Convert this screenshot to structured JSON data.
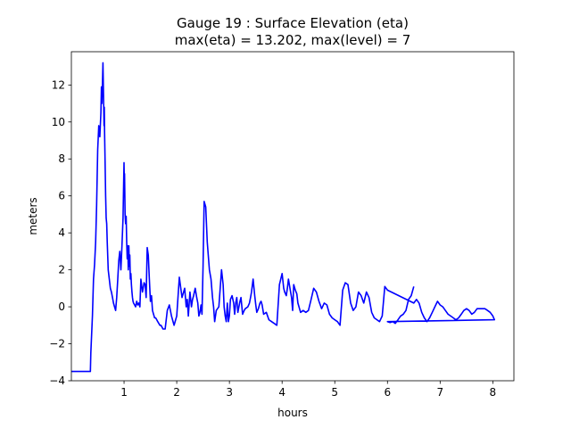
{
  "chart_data": {
    "type": "line",
    "title_line1": "Gauge 19 : Surface Elevation (eta)",
    "title_line2": "max(eta) =  13.202,    max(level) = 7",
    "xlabel": "hours",
    "ylabel": "meters",
    "xlim": [
      0.0,
      8.4
    ],
    "ylim": [
      -4,
      13.8
    ],
    "xticks": [
      1,
      2,
      3,
      4,
      5,
      6,
      7,
      8
    ],
    "yticks": [
      -4,
      -2,
      0,
      2,
      4,
      6,
      8,
      10,
      12
    ],
    "series": [
      {
        "name": "eta",
        "color": "#0000ff",
        "x": [
          0.0,
          0.36,
          0.37,
          0.4,
          0.42,
          0.44,
          0.46,
          0.48,
          0.5,
          0.52,
          0.54,
          0.56,
          0.57,
          0.58,
          0.59,
          0.6,
          0.61,
          0.62,
          0.625,
          0.63,
          0.64,
          0.65,
          0.66,
          0.67,
          0.68,
          0.7,
          0.72,
          0.74,
          0.76,
          0.78,
          0.8,
          0.82,
          0.84,
          0.86,
          0.88,
          0.9,
          0.92,
          0.94,
          0.96,
          0.98,
          1.0,
          1.005,
          1.01,
          1.02,
          1.03,
          1.04,
          1.05,
          1.06,
          1.07,
          1.08,
          1.09,
          1.1,
          1.11,
          1.12,
          1.13,
          1.14,
          1.15,
          1.16,
          1.17,
          1.18,
          1.2,
          1.22,
          1.24,
          1.26,
          1.28,
          1.3,
          1.32,
          1.35,
          1.38,
          1.4,
          1.42,
          1.44,
          1.46,
          1.48,
          1.5,
          1.52,
          1.54,
          1.56,
          1.58,
          1.6,
          1.62,
          1.64,
          1.66,
          1.68,
          1.7,
          1.72,
          1.74,
          1.78,
          1.82,
          1.86,
          1.9,
          1.95,
          2.0,
          2.05,
          2.1,
          2.15,
          2.18,
          2.2,
          2.22,
          2.25,
          2.28,
          2.3,
          2.32,
          2.35,
          2.38,
          2.4,
          2.42,
          2.44,
          2.46,
          2.48,
          2.5,
          2.52,
          2.55,
          2.58,
          2.62,
          2.65,
          2.68,
          2.7,
          2.72,
          2.75,
          2.8,
          2.85,
          2.88,
          2.9,
          2.92,
          2.94,
          2.96,
          2.98,
          3.0,
          3.02,
          3.05,
          3.08,
          3.1,
          3.12,
          3.14,
          3.16,
          3.18,
          3.2,
          3.22,
          3.25,
          3.28,
          3.3,
          3.35,
          3.38,
          3.4,
          3.42,
          3.45,
          3.48,
          3.5,
          3.52,
          3.55,
          3.58,
          3.6,
          3.62,
          3.65,
          3.7,
          3.75,
          3.8,
          3.85,
          3.9,
          3.95,
          4.0,
          4.03,
          4.05,
          4.08,
          4.1,
          4.12,
          4.15,
          4.18,
          4.2,
          4.22,
          4.25,
          4.28,
          4.3,
          4.35,
          4.4,
          4.45,
          4.5,
          4.55,
          4.6,
          4.65,
          4.7,
          4.75,
          4.8,
          4.85,
          4.9,
          4.95,
          5.0,
          5.05,
          5.1,
          5.15,
          5.2,
          5.25,
          5.3,
          5.35,
          5.4,
          5.45,
          5.5,
          5.55,
          5.6,
          5.65,
          5.7,
          5.75,
          5.8,
          5.85,
          5.9,
          5.95,
          6.0,
          6.5,
          6.55,
          6.6,
          6.65,
          6.7,
          6.75,
          6.8,
          6.85,
          6.9,
          6.95,
          7.0,
          7.05,
          7.1,
          7.15,
          7.2,
          7.25,
          7.3,
          7.35,
          7.4,
          7.45,
          7.5,
          7.55,
          7.6,
          7.65,
          7.7,
          7.75,
          7.8,
          7.85,
          7.9,
          7.95,
          8.0,
          8.03,
          6.0,
          6.05,
          6.1,
          6.15,
          6.2,
          6.25,
          6.3,
          6.35,
          6.4,
          6.45,
          6.5
        ],
        "y": [
          -3.5,
          -3.5,
          -2.5,
          -0.5,
          1.5,
          2.3,
          3.5,
          5.5,
          8.5,
          9.8,
          9.2,
          10.5,
          11.9,
          11.0,
          12.0,
          13.2,
          11.5,
          9.8,
          10.8,
          9.5,
          7.8,
          6.0,
          4.8,
          4.5,
          3.5,
          2.0,
          1.5,
          1.0,
          0.8,
          0.5,
          0.2,
          0.0,
          -0.2,
          0.5,
          1.5,
          2.5,
          3.0,
          2.0,
          3.3,
          4.8,
          7.8,
          6.8,
          7.2,
          5.0,
          4.5,
          4.9,
          3.5,
          2.6,
          3.3,
          2.0,
          3.3,
          2.2,
          2.8,
          1.5,
          1.8,
          1.2,
          0.8,
          0.5,
          0.3,
          0.2,
          0.1,
          0.0,
          0.3,
          0.1,
          0.2,
          0.0,
          1.5,
          0.8,
          1.3,
          1.2,
          0.5,
          3.2,
          2.8,
          1.5,
          0.3,
          0.6,
          -0.2,
          -0.4,
          -0.6,
          -0.6,
          -0.7,
          -0.8,
          -0.9,
          -1.0,
          -1.0,
          -1.1,
          -1.2,
          -1.2,
          -0.2,
          0.1,
          -0.5,
          -1.0,
          -0.5,
          1.6,
          0.5,
          1.0,
          0.0,
          0.4,
          -0.5,
          0.8,
          0.0,
          0.4,
          0.6,
          1.0,
          0.5,
          0.2,
          -0.5,
          -0.3,
          0.1,
          -0.4,
          2.2,
          5.7,
          5.4,
          3.5,
          2.0,
          1.5,
          0.5,
          0.0,
          -0.8,
          -0.2,
          0.0,
          2.0,
          1.2,
          0.0,
          -0.5,
          -0.8,
          0.2,
          -0.8,
          -0.5,
          0.4,
          0.6,
          0.2,
          -0.4,
          0.2,
          0.5,
          -0.3,
          0.0,
          0.3,
          0.5,
          -0.4,
          -0.2,
          -0.1,
          0.0,
          0.2,
          0.5,
          0.8,
          1.5,
          0.6,
          0.1,
          -0.3,
          -0.1,
          0.2,
          0.3,
          0.1,
          -0.4,
          -0.3,
          -0.7,
          -0.8,
          -0.9,
          -1.0,
          1.2,
          1.8,
          1.0,
          0.8,
          0.6,
          1.0,
          1.5,
          1.0,
          0.5,
          -0.2,
          1.2,
          0.9,
          0.7,
          0.2,
          -0.3,
          -0.2,
          -0.3,
          -0.2,
          0.4,
          1.0,
          0.8,
          0.3,
          -0.1,
          0.2,
          0.1,
          -0.4,
          -0.6,
          -0.7,
          -0.8,
          -1.0,
          0.9,
          1.3,
          1.2,
          0.2,
          -0.2,
          0.0,
          0.8,
          0.6,
          0.2,
          0.8,
          0.5,
          -0.3,
          -0.6,
          -0.7,
          -0.8,
          -0.5,
          1.1,
          0.9,
          0.2,
          0.4,
          0.2,
          -0.3,
          -0.6,
          -0.8,
          -0.6,
          -0.3,
          0.0,
          0.3,
          0.1,
          0.0,
          -0.2,
          -0.4,
          -0.5,
          -0.6,
          -0.7,
          -0.6,
          -0.4,
          -0.2,
          -0.1,
          -0.2,
          -0.4,
          -0.3,
          -0.1,
          -0.1,
          -0.1,
          -0.1,
          -0.2,
          -0.3,
          -0.5,
          -0.7,
          -0.8,
          -0.85,
          -0.8,
          -0.9,
          -0.7,
          -0.5,
          -0.4,
          -0.2,
          0.4,
          0.6,
          1.1
        ]
      }
    ]
  }
}
